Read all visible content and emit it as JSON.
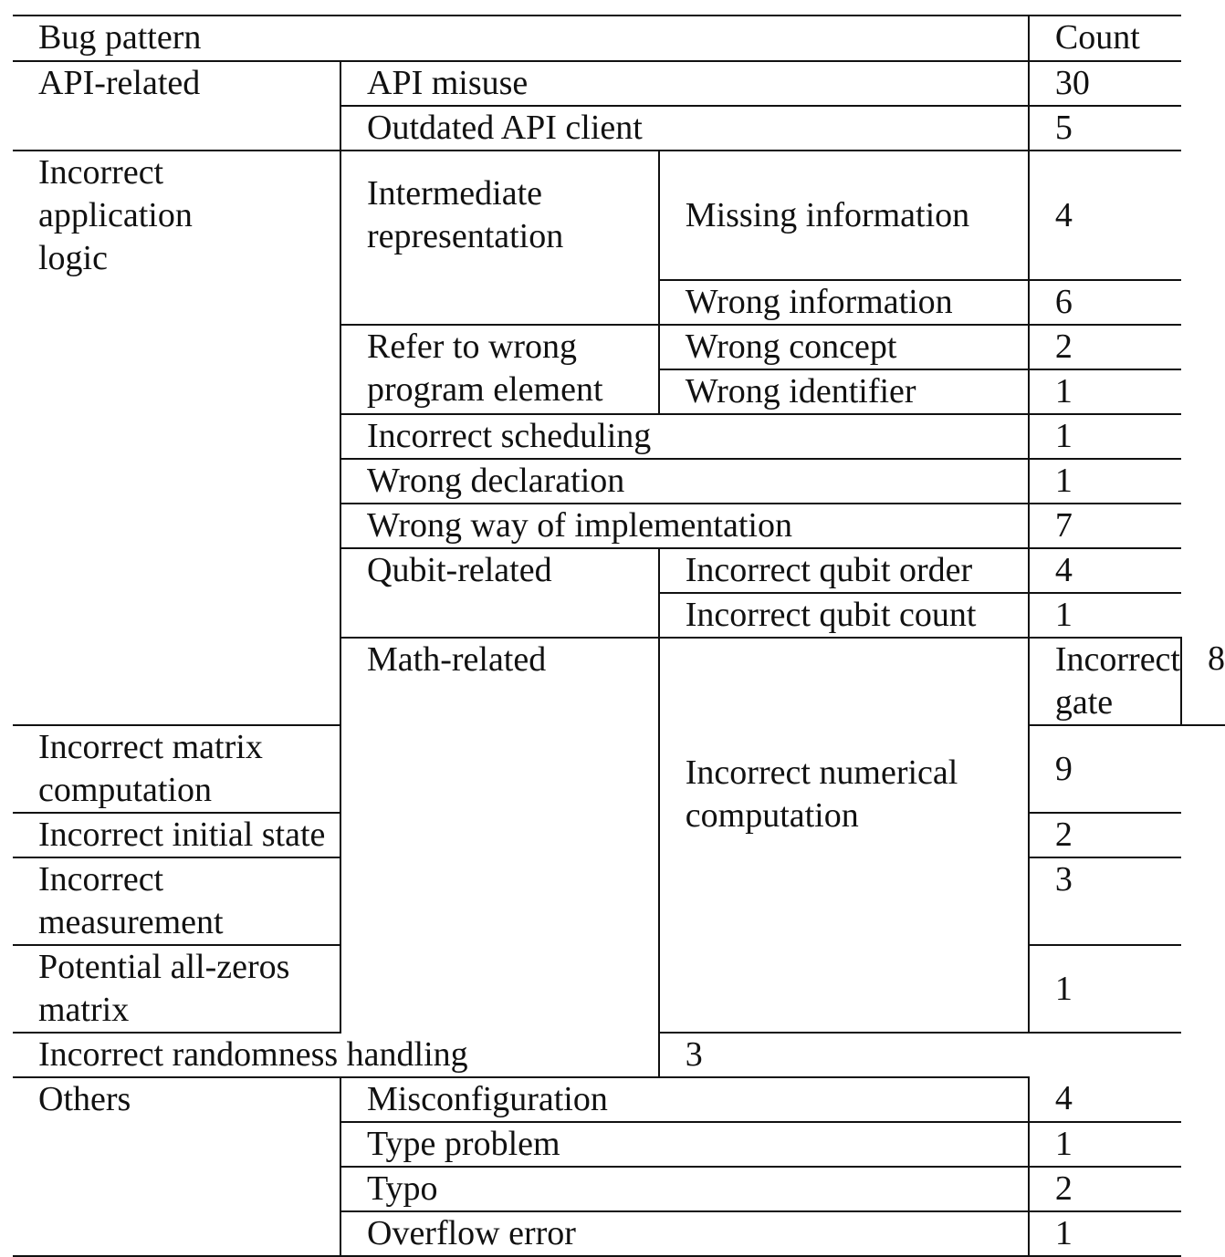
{
  "header": {
    "bug_pattern": "Bug pattern",
    "count": "Count"
  },
  "rows": {
    "api_related": "API-related",
    "api_misuse": "API misuse",
    "api_misuse_count": "30",
    "outdated_api": "Outdated API client",
    "outdated_api_count": "5",
    "incorrect_app_logic": "Incorrect application logic",
    "intermediate_rep": "Intermediate representation",
    "missing_info": "Missing information",
    "missing_info_count": "4",
    "wrong_info": "Wrong information",
    "wrong_info_count": "6",
    "refer_wrong": "Refer to wrong program element",
    "wrong_concept": "Wrong concept",
    "wrong_concept_count": "2",
    "wrong_identifier": "Wrong identifier",
    "wrong_identifier_count": "1",
    "incorrect_scheduling": "Incorrect scheduling",
    "incorrect_scheduling_count": "1",
    "wrong_declaration": "Wrong declaration",
    "wrong_declaration_count": "1",
    "wrong_way": "Wrong way of implementation",
    "wrong_way_count": "7",
    "qubit_related": "Qubit-related",
    "qubit_order": "Incorrect qubit order",
    "qubit_order_count": "4",
    "qubit_count": "Incorrect qubit count",
    "qubit_count_count": "1",
    "math_related": "Math-related",
    "numerical": "Incorrect numerical computation",
    "gate": "Incorrect gate",
    "gate_count": "8",
    "matrix": "Incorrect matrix computation",
    "matrix_count": "9",
    "initial_state": "Incorrect initial state",
    "initial_state_count": "2",
    "measurement": "Incorrect measurement",
    "measurement_count": "3",
    "all_zeros": "Potential all-zeros matrix",
    "all_zeros_count": "1",
    "randomness": "Incorrect randomness handling",
    "randomness_count": "3",
    "others": "Others",
    "misconfiguration": "Misconfiguration",
    "misconfiguration_count": "4",
    "type_problem": "Type problem",
    "type_problem_count": "1",
    "typo": "Typo",
    "typo_count": "2",
    "overflow": "Overflow error",
    "overflow_count": "1"
  }
}
